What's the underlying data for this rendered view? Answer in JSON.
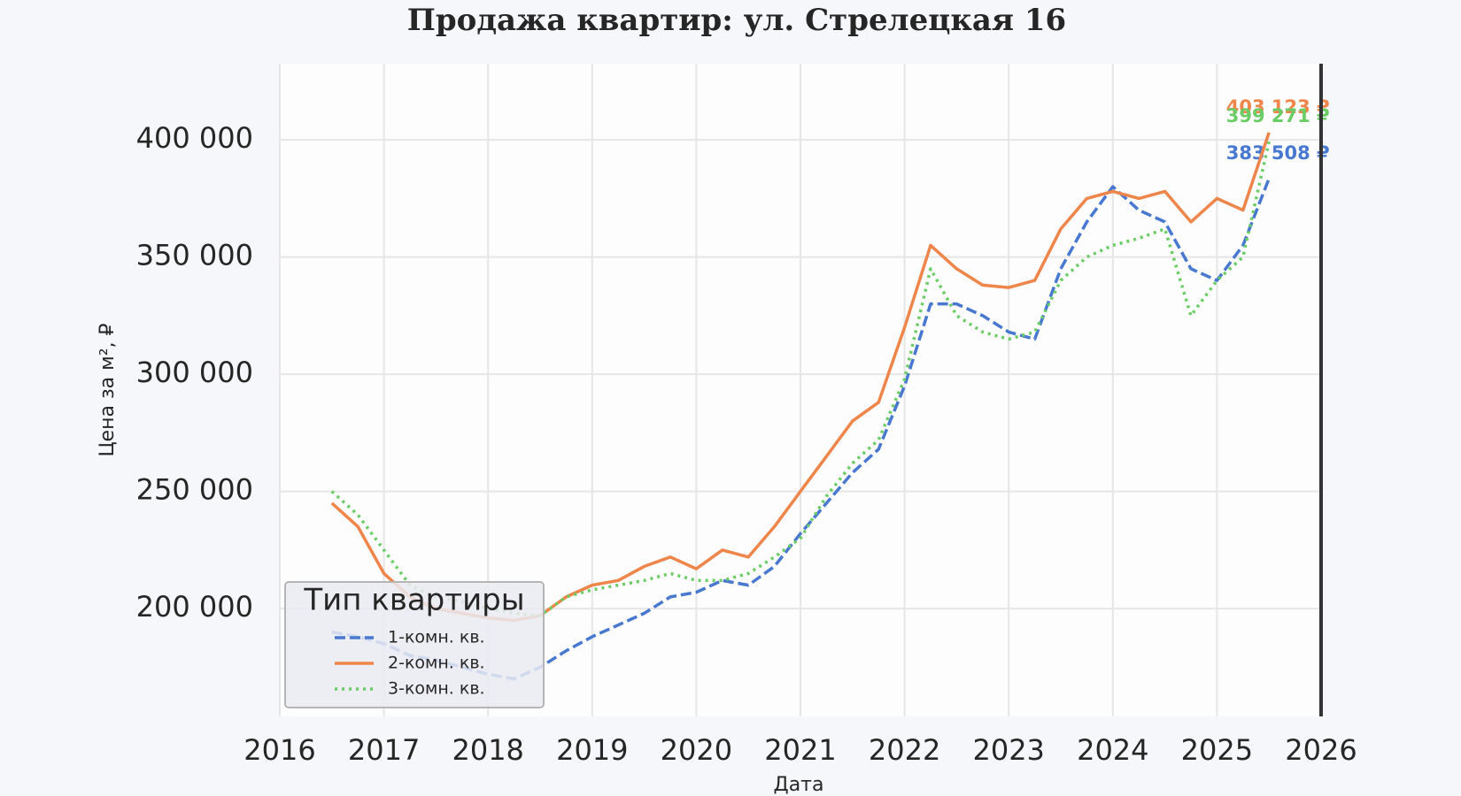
{
  "chart_data": {
    "type": "line",
    "title": "Продажа квартир: ул. Стрелецкая 16",
    "x_label": "Дата",
    "y_label": "Цена за м², ₽",
    "x": [
      2016.5,
      2016.75,
      2017,
      2017.25,
      2017.5,
      2017.75,
      2018,
      2018.25,
      2018.5,
      2018.75,
      2019,
      2019.25,
      2019.5,
      2019.75,
      2020,
      2020.25,
      2020.5,
      2020.75,
      2021,
      2021.25,
      2021.5,
      2021.75,
      2022,
      2022.25,
      2022.5,
      2022.75,
      2023,
      2023.25,
      2023.5,
      2023.75,
      2024,
      2024.25,
      2024.5,
      2024.75,
      2025,
      2025.25,
      2025.5
    ],
    "series": [
      {
        "name": "1-комн. кв.",
        "color": "#4878d0",
        "dash": "12 5",
        "end_label": "383 508 ₽",
        "values": [
          190000,
          188000,
          185000,
          180000,
          178000,
          175000,
          172000,
          170000,
          175000,
          182000,
          188000,
          193000,
          198000,
          205000,
          207000,
          212000,
          210000,
          218000,
          232000,
          245000,
          258000,
          268000,
          295000,
          330000,
          330000,
          325000,
          318000,
          315000,
          345000,
          365000,
          380000,
          370000,
          365000,
          345000,
          340000,
          355000,
          383508
        ]
      },
      {
        "name": "2-комн. кв.",
        "color": "#ee854a",
        "dash": "none",
        "end_label": "403 123 ₽",
        "values": [
          245000,
          235000,
          215000,
          205000,
          200000,
          198000,
          196000,
          195000,
          197000,
          205000,
          210000,
          212000,
          218000,
          222000,
          217000,
          225000,
          222000,
          235000,
          250000,
          265000,
          280000,
          288000,
          320000,
          355000,
          345000,
          338000,
          337000,
          340000,
          362000,
          375000,
          378000,
          375000,
          378000,
          365000,
          375000,
          370000,
          403123
        ]
      },
      {
        "name": "3-комн. кв.",
        "color": "#6acc64",
        "dash": "3 5",
        "end_label": "399 271 ₽",
        "values": [
          250000,
          240000,
          225000,
          210000,
          205000,
          203000,
          200000,
          198000,
          197000,
          205000,
          208000,
          210000,
          212000,
          215000,
          212000,
          212000,
          215000,
          222000,
          230000,
          248000,
          262000,
          272000,
          298000,
          345000,
          325000,
          318000,
          315000,
          318000,
          340000,
          350000,
          355000,
          358000,
          362000,
          325000,
          340000,
          350000,
          399271
        ]
      }
    ],
    "xlim": [
      2016,
      2026
    ],
    "xticks": [
      2016,
      2017,
      2018,
      2019,
      2020,
      2021,
      2022,
      2023,
      2024,
      2025,
      2026
    ],
    "ylim": [
      154000,
      432500
    ],
    "yticks": [
      {
        "value": 200000,
        "label": "200 000"
      },
      {
        "value": 250000,
        "label": "250 000"
      },
      {
        "value": 300000,
        "label": "300 000"
      },
      {
        "value": 350000,
        "label": "350 000"
      },
      {
        "value": 400000,
        "label": "400 000"
      }
    ],
    "grid": true,
    "legend_title": "Тип квартиры",
    "legend_position": "lower left"
  }
}
